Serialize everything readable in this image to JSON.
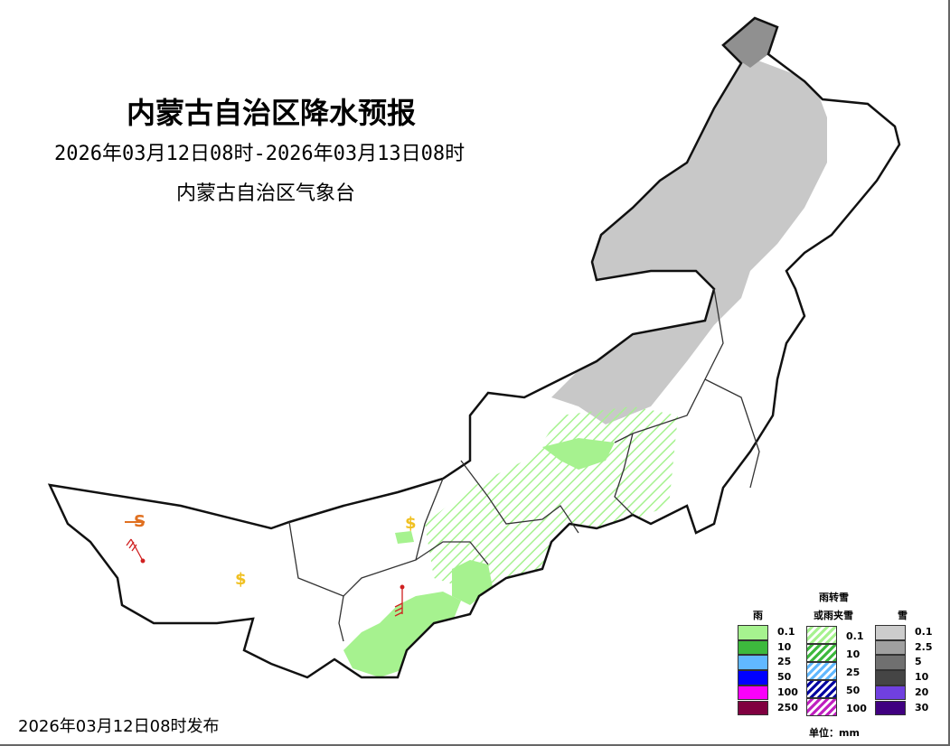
{
  "header": {
    "title": "内蒙古自治区降水预报",
    "period": "2026年03月12日08时-2026年03月13日08时",
    "organization": "内蒙古自治区气象台"
  },
  "footer": {
    "issued": "2026年03月12日08时发布"
  },
  "map_symbols": {
    "snow_symbol": "$",
    "sleet_symbol": "S"
  },
  "legend": {
    "rain_title": "雨",
    "mixed_title_1": "雨转雪",
    "mixed_title_2": "或雨夹雪",
    "snow_title": "雪",
    "unit": "单位：mm",
    "rain": [
      {
        "label": "0.1",
        "color": "#a6f28f"
      },
      {
        "label": "10",
        "color": "#3db93d"
      },
      {
        "label": "25",
        "color": "#61b8ff"
      },
      {
        "label": "50",
        "color": "#0000ff"
      },
      {
        "label": "100",
        "color": "#fa00fa"
      },
      {
        "label": "250",
        "color": "#800040"
      }
    ],
    "mixed": [
      {
        "label": "0.1",
        "color": "#a6f28f"
      },
      {
        "label": "10",
        "color": "#3db93d"
      },
      {
        "label": "25",
        "color": "#61b8ff"
      },
      {
        "label": "50",
        "color": "#0000a0"
      },
      {
        "label": "100",
        "color": "#c020c0"
      }
    ],
    "snow": [
      {
        "label": "0.1",
        "color": "#cccccc"
      },
      {
        "label": "2.5",
        "color": "#a0a0a0"
      },
      {
        "label": "5",
        "color": "#707070"
      },
      {
        "label": "10",
        "color": "#454545"
      },
      {
        "label": "20",
        "color": "#7040e0"
      },
      {
        "label": "30",
        "color": "#400080"
      }
    ]
  }
}
